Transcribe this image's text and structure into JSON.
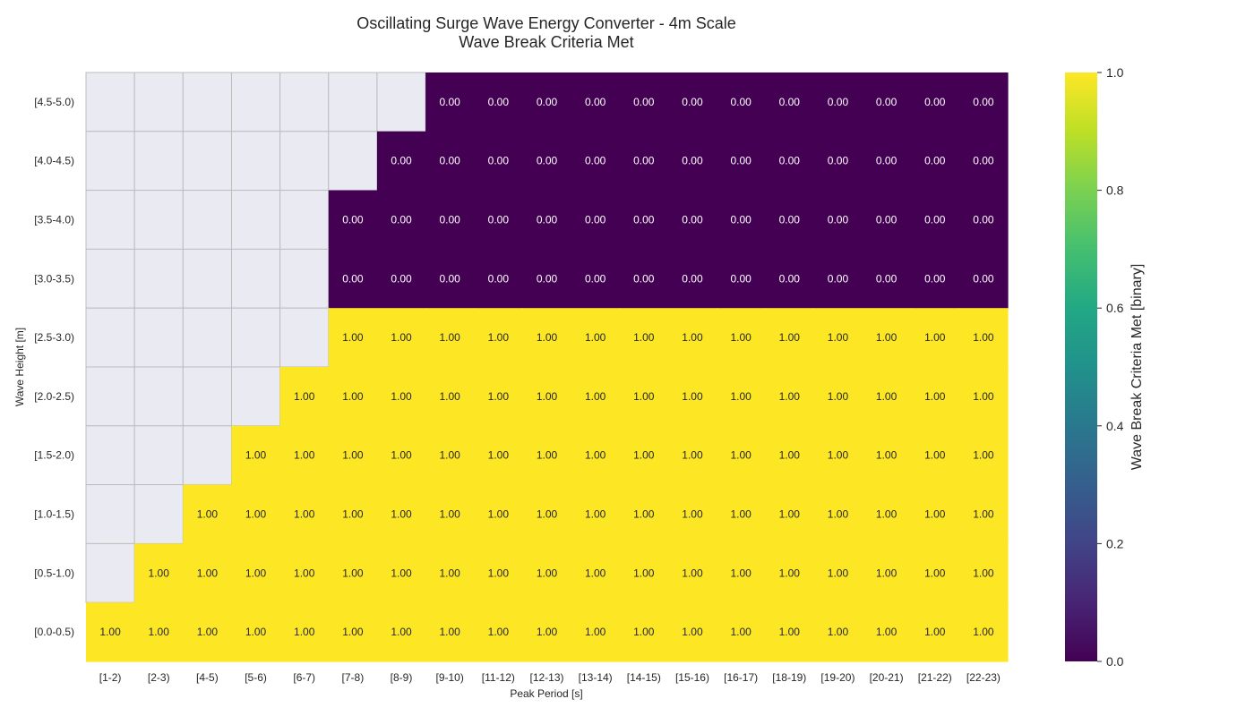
{
  "chart_data": {
    "type": "heatmap",
    "title_line1": "Oscillating Surge Wave Energy Converter - 4m Scale",
    "title_line2": "Wave Break Criteria Met",
    "xlabel": "Peak Period [s]",
    "ylabel": "Wave Height [m]",
    "x_categories": [
      "[1-2)",
      "[2-3)",
      "[4-5)",
      "[5-6)",
      "[6-7)",
      "[7-8)",
      "[8-9)",
      "[9-10)",
      "[11-12)",
      "[12-13)",
      "[13-14)",
      "[14-15)",
      "[15-16)",
      "[16-17)",
      "[18-19)",
      "[19-20)",
      "[20-21)",
      "[21-22)",
      "[22-23)"
    ],
    "y_categories": [
      "[4.5-5.0)",
      "[4.0-4.5)",
      "[3.5-4.0)",
      "[3.0-3.5)",
      "[2.5-3.0)",
      "[2.0-2.5)",
      "[1.5-2.0)",
      "[1.0-1.5)",
      "[0.5-1.0)",
      "[0.0-0.5)"
    ],
    "values": [
      [
        null,
        null,
        null,
        null,
        null,
        null,
        null,
        0,
        0,
        0,
        0,
        0,
        0,
        0,
        0,
        0,
        0,
        0,
        0
      ],
      [
        null,
        null,
        null,
        null,
        null,
        null,
        0,
        0,
        0,
        0,
        0,
        0,
        0,
        0,
        0,
        0,
        0,
        0,
        0
      ],
      [
        null,
        null,
        null,
        null,
        null,
        0,
        0,
        0,
        0,
        0,
        0,
        0,
        0,
        0,
        0,
        0,
        0,
        0,
        0
      ],
      [
        null,
        null,
        null,
        null,
        null,
        0,
        0,
        0,
        0,
        0,
        0,
        0,
        0,
        0,
        0,
        0,
        0,
        0,
        0
      ],
      [
        null,
        null,
        null,
        null,
        null,
        1,
        1,
        1,
        1,
        1,
        1,
        1,
        1,
        1,
        1,
        1,
        1,
        1,
        1
      ],
      [
        null,
        null,
        null,
        null,
        1,
        1,
        1,
        1,
        1,
        1,
        1,
        1,
        1,
        1,
        1,
        1,
        1,
        1,
        1
      ],
      [
        null,
        null,
        null,
        1,
        1,
        1,
        1,
        1,
        1,
        1,
        1,
        1,
        1,
        1,
        1,
        1,
        1,
        1,
        1
      ],
      [
        null,
        null,
        1,
        1,
        1,
        1,
        1,
        1,
        1,
        1,
        1,
        1,
        1,
        1,
        1,
        1,
        1,
        1,
        1
      ],
      [
        null,
        1,
        1,
        1,
        1,
        1,
        1,
        1,
        1,
        1,
        1,
        1,
        1,
        1,
        1,
        1,
        1,
        1,
        1
      ],
      [
        1,
        1,
        1,
        1,
        1,
        1,
        1,
        1,
        1,
        1,
        1,
        1,
        1,
        1,
        1,
        1,
        1,
        1,
        1
      ]
    ],
    "value_format_decimals": 2,
    "colorscale": "viridis",
    "colorbar": {
      "label": "Wave Break Criteria Met [binary]",
      "range": [
        0.0,
        1.0
      ],
      "ticks": [
        "0.0",
        "0.2",
        "0.4",
        "0.6",
        "0.8",
        "1.0"
      ]
    },
    "colors": {
      "low": "#440154",
      "high": "#fde725",
      "missing": "#eaeaf2",
      "missing_grid": "#bdbdbd",
      "label_on_low": "#ffffff",
      "label_on_high": "#262626"
    }
  }
}
